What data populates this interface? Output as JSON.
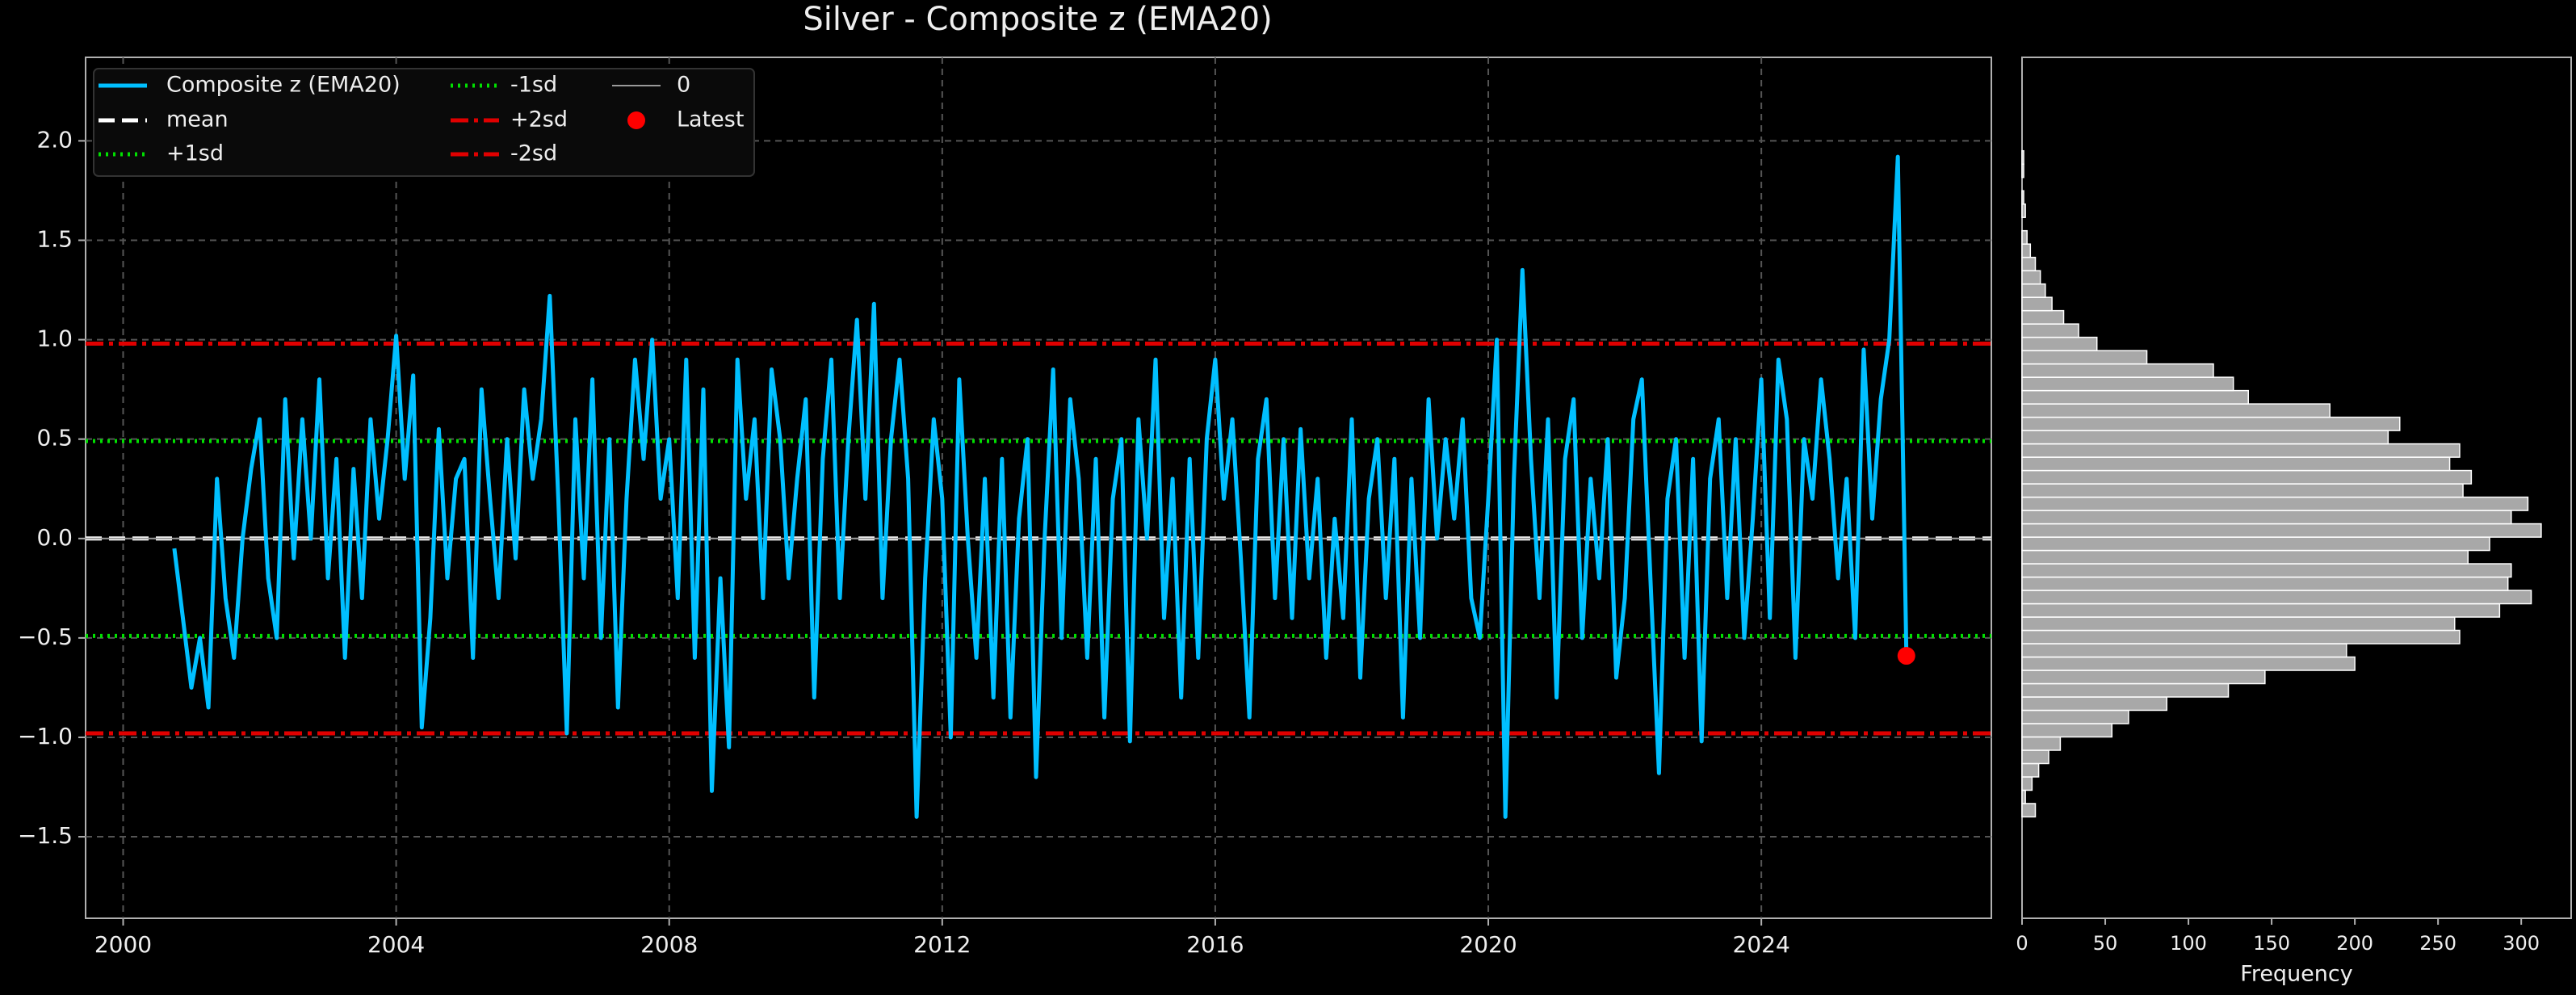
{
  "chart_data": [
    {
      "type": "line",
      "title": "Silver - Composite z (EMA20)",
      "xlim": [
        1999.45,
        2027.37
      ],
      "xticks": [
        2000,
        2004,
        2008,
        2012,
        2016,
        2020,
        2024
      ],
      "ylim": [
        -1.91,
        2.42
      ],
      "yticks": [
        {
          "value": -1.5,
          "label": "−1.5"
        },
        {
          "value": -1.0,
          "label": "−1.0"
        },
        {
          "value": -0.5,
          "label": "−0.5"
        },
        {
          "value": 0,
          "label": "0.0"
        },
        {
          "value": 0.5,
          "label": "0.5"
        },
        {
          "value": 1.0,
          "label": "1.0"
        },
        {
          "value": 1.5,
          "label": "1.5"
        },
        {
          "value": 2.0,
          "label": "2.0"
        }
      ],
      "grid": true,
      "series": [
        {
          "name": "Composite z (EMA20)",
          "color": "#00bfff",
          "x": [
            2000.75,
            2000.875,
            2001,
            2001.125,
            2001.25,
            2001.375,
            2001.5,
            2001.625,
            2001.75,
            2001.875,
            2002,
            2002.125,
            2002.25,
            2002.375,
            2002.5,
            2002.625,
            2002.75,
            2002.875,
            2003,
            2003.125,
            2003.25,
            2003.375,
            2003.5,
            2003.625,
            2003.75,
            2003.875,
            2004,
            2004.125,
            2004.25,
            2004.375,
            2004.5,
            2004.625,
            2004.75,
            2004.875,
            2005,
            2005.125,
            2005.25,
            2005.375,
            2005.5,
            2005.625,
            2005.75,
            2005.875,
            2006,
            2006.125,
            2006.25,
            2006.375,
            2006.5,
            2006.625,
            2006.75,
            2006.875,
            2007,
            2007.125,
            2007.25,
            2007.375,
            2007.5,
            2007.625,
            2007.75,
            2007.875,
            2008,
            2008.125,
            2008.25,
            2008.375,
            2008.5,
            2008.625,
            2008.75,
            2008.875,
            2009,
            2009.125,
            2009.25,
            2009.375,
            2009.5,
            2009.625,
            2009.75,
            2009.875,
            2010,
            2010.125,
            2010.25,
            2010.375,
            2010.5,
            2010.625,
            2010.75,
            2010.875,
            2011,
            2011.125,
            2011.25,
            2011.375,
            2011.5,
            2011.625,
            2011.75,
            2011.875,
            2012,
            2012.125,
            2012.25,
            2012.375,
            2012.5,
            2012.625,
            2012.75,
            2012.875,
            2013,
            2013.125,
            2013.25,
            2013.375,
            2013.5,
            2013.625,
            2013.75,
            2013.875,
            2014,
            2014.125,
            2014.25,
            2014.375,
            2014.5,
            2014.625,
            2014.75,
            2014.875,
            2015,
            2015.125,
            2015.25,
            2015.375,
            2015.5,
            2015.625,
            2015.75,
            2015.875,
            2016,
            2016.125,
            2016.25,
            2016.375,
            2016.5,
            2016.625,
            2016.75,
            2016.875,
            2017,
            2017.125,
            2017.25,
            2017.375,
            2017.5,
            2017.625,
            2017.75,
            2017.875,
            2018,
            2018.125,
            2018.25,
            2018.375,
            2018.5,
            2018.625,
            2018.75,
            2018.875,
            2019,
            2019.125,
            2019.25,
            2019.375,
            2019.5,
            2019.625,
            2019.75,
            2019.875,
            2020,
            2020.125,
            2020.25,
            2020.375,
            2020.5,
            2020.625,
            2020.75,
            2020.875,
            2021,
            2021.125,
            2021.25,
            2021.375,
            2021.5,
            2021.625,
            2021.75,
            2021.875,
            2022,
            2022.125,
            2022.25,
            2022.375,
            2022.5,
            2022.625,
            2022.75,
            2022.875,
            2023,
            2023.125,
            2023.25,
            2023.375,
            2023.5,
            2023.625,
            2023.75,
            2023.875,
            2024,
            2024.125,
            2024.25,
            2024.375,
            2024.5,
            2024.625,
            2024.75,
            2024.875,
            2025,
            2025.125,
            2025.25,
            2025.375,
            2025.5,
            2025.625,
            2025.75,
            2025.875,
            2026,
            2026.125
          ],
          "values": [
            -0.05,
            -0.4,
            -0.75,
            -0.5,
            -0.85,
            0.3,
            -0.3,
            -0.6,
            0.0,
            0.35,
            0.6,
            -0.2,
            -0.5,
            0.7,
            -0.1,
            0.6,
            0.0,
            0.8,
            -0.2,
            0.4,
            -0.6,
            0.35,
            -0.3,
            0.6,
            0.1,
            0.5,
            1.02,
            0.3,
            0.82,
            -0.95,
            -0.4,
            0.55,
            -0.2,
            0.3,
            0.4,
            -0.6,
            0.75,
            0.2,
            -0.3,
            0.5,
            -0.1,
            0.75,
            0.3,
            0.6,
            1.22,
            0.2,
            -0.98,
            0.6,
            -0.2,
            0.8,
            -0.5,
            0.5,
            -0.85,
            0.2,
            0.9,
            0.4,
            1.0,
            0.2,
            0.5,
            -0.3,
            0.9,
            -0.6,
            0.75,
            -1.27,
            -0.2,
            -1.05,
            0.9,
            0.2,
            0.6,
            -0.3,
            0.85,
            0.5,
            -0.2,
            0.3,
            0.7,
            -0.8,
            0.4,
            0.9,
            -0.3,
            0.5,
            1.1,
            0.2,
            1.18,
            -0.3,
            0.5,
            0.9,
            0.3,
            -1.4,
            -0.2,
            0.6,
            0.2,
            -1.0,
            0.8,
            0.0,
            -0.6,
            0.3,
            -0.8,
            0.4,
            -0.9,
            0.1,
            0.5,
            -1.2,
            0.0,
            0.85,
            -0.5,
            0.7,
            0.3,
            -0.6,
            0.4,
            -0.9,
            0.2,
            0.5,
            -1.02,
            0.6,
            0.0,
            0.9,
            -0.4,
            0.3,
            -0.8,
            0.4,
            -0.6,
            0.5,
            0.9,
            0.2,
            0.6,
            -0.1,
            -0.9,
            0.4,
            0.7,
            -0.3,
            0.5,
            -0.4,
            0.55,
            -0.2,
            0.3,
            -0.6,
            0.1,
            -0.4,
            0.6,
            -0.7,
            0.2,
            0.5,
            -0.3,
            0.4,
            -0.9,
            0.3,
            -0.5,
            0.7,
            0.0,
            0.5,
            0.1,
            0.6,
            -0.3,
            -0.5,
            0.2,
            1.0,
            -1.4,
            0.3,
            1.35,
            0.4,
            -0.3,
            0.6,
            -0.8,
            0.4,
            0.7,
            -0.5,
            0.3,
            -0.2,
            0.5,
            -0.7,
            -0.3,
            0.6,
            0.8,
            -0.2,
            -1.18,
            0.2,
            0.5,
            -0.6,
            0.4,
            -1.02,
            0.3,
            0.6,
            -0.3,
            0.5,
            -0.5,
            0.1,
            0.8,
            -0.4,
            0.9,
            0.6,
            -0.6,
            0.5,
            0.2,
            0.8,
            0.4,
            -0.2,
            0.3,
            -0.5,
            0.95,
            0.1,
            0.7,
            1.0,
            1.92,
            -0.59
          ]
        }
      ],
      "hlines": [
        {
          "name": "mean",
          "value": 0,
          "color": "#ffffff",
          "style": "dashed"
        },
        {
          "name": "+1sd",
          "value": 0.49,
          "color": "#00e000",
          "style": "dotted"
        },
        {
          "name": "-1sd",
          "value": -0.49,
          "color": "#00e000",
          "style": "dotted"
        },
        {
          "name": "+2sd",
          "value": 0.98,
          "color": "#e00000",
          "style": "dashdot"
        },
        {
          "name": "-2sd",
          "value": -0.98,
          "color": "#e00000",
          "style": "dashdot"
        },
        {
          "name": "0",
          "value": 0,
          "color": "#9a9a9a",
          "style": "solid"
        }
      ],
      "point": {
        "name": "Latest",
        "x": 2026.125,
        "y": -0.59,
        "color": "#ff0000"
      },
      "legend": "upper left"
    },
    {
      "type": "histogram",
      "orientation": "horizontal",
      "color": "#a8a8a8",
      "xlabel": "Frequency",
      "xlim": [
        0,
        330
      ],
      "xticks": [
        0,
        50,
        100,
        150,
        200,
        250,
        300
      ],
      "ylim": [
        -1.91,
        2.42
      ],
      "bins": [
        -1.4,
        -1.333,
        -1.266,
        -1.199,
        -1.132,
        -1.065,
        -0.998,
        -0.931,
        -0.864,
        -0.797,
        -0.73,
        -0.663,
        -0.596,
        -0.529,
        -0.462,
        -0.395,
        -0.328,
        -0.261,
        -0.194,
        -0.127,
        -0.06,
        0.007,
        0.074,
        0.141,
        0.208,
        0.275,
        0.342,
        0.409,
        0.476,
        0.543,
        0.61,
        0.677,
        0.744,
        0.811,
        0.878,
        0.945,
        1.012,
        1.079,
        1.146,
        1.213,
        1.28,
        1.347,
        1.414,
        1.481,
        1.548,
        1.615,
        1.682,
        1.749,
        1.816,
        1.883,
        1.95
      ],
      "values": [
        8,
        2,
        6,
        10,
        16,
        23,
        54,
        64,
        87,
        124,
        146,
        200,
        195,
        263,
        260,
        287,
        306,
        292,
        294,
        268,
        281,
        312,
        294,
        304,
        265,
        270,
        257,
        263,
        220,
        227,
        185,
        136,
        127,
        115,
        75,
        45,
        34,
        25,
        18,
        14,
        11,
        8,
        5,
        3,
        0,
        2,
        1,
        0,
        1,
        1
      ]
    }
  ]
}
